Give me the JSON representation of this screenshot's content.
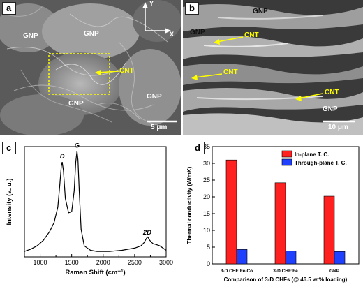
{
  "panels": {
    "a": {
      "letter": "a",
      "labels": [
        "GNP",
        "GNP",
        "GNP",
        "GNP"
      ],
      "cnt": "CNT",
      "axis_y": "Y",
      "axis_x": "X",
      "scale_bar": "5 μm"
    },
    "b": {
      "letter": "b",
      "labels": [
        "GNP",
        "GNP",
        "GNP"
      ],
      "cnt": [
        "CNT",
        "CNT",
        "CNT"
      ],
      "scale_bar": "10 μm"
    }
  },
  "chart_data": [
    {
      "panel": "c",
      "letter": "c",
      "type": "line",
      "xlabel": "Raman Shift (cm⁻¹)",
      "ylabel": "Intensity (a. u.)",
      "xlim": [
        750,
        3000
      ],
      "xticks": [
        1000,
        1500,
        2000,
        2500,
        3000
      ],
      "tick_labels": [
        "1000",
        "1500",
        "2000",
        "2500",
        "3000"
      ],
      "annotations": [
        {
          "text": "D",
          "x": 1350
        },
        {
          "text": "G",
          "x": 1585
        },
        {
          "text": "2D",
          "x": 2700
        }
      ],
      "series": [
        {
          "x": [
            750,
            850,
            950,
            1050,
            1150,
            1220,
            1280,
            1310,
            1335,
            1350,
            1370,
            1400,
            1450,
            1500,
            1540,
            1565,
            1585,
            1600,
            1620,
            1650,
            1700,
            1800,
            1900,
            2000,
            2100,
            2200,
            2300,
            2400,
            2500,
            2600,
            2650,
            2690,
            2710,
            2740,
            2790,
            2850,
            2900,
            2950,
            3000
          ],
          "y": [
            0.05,
            0.07,
            0.1,
            0.15,
            0.23,
            0.31,
            0.45,
            0.64,
            0.82,
            0.86,
            0.78,
            0.53,
            0.4,
            0.41,
            0.6,
            0.86,
            0.96,
            0.88,
            0.6,
            0.25,
            0.1,
            0.06,
            0.05,
            0.05,
            0.05,
            0.055,
            0.06,
            0.07,
            0.08,
            0.1,
            0.13,
            0.17,
            0.18,
            0.15,
            0.12,
            0.11,
            0.1,
            0.08,
            0.06
          ]
        }
      ]
    },
    {
      "panel": "d",
      "letter": "d",
      "type": "bar",
      "xlabel": "Comparison of 3-D CHFs (@ 46.5 wt% loading)",
      "ylabel": "Thermal conductivity (W/mK)",
      "ylim": [
        0,
        35
      ],
      "yticks": [
        0,
        5,
        10,
        15,
        20,
        25,
        30,
        35
      ],
      "tick_labels": [
        "0",
        "5",
        "10",
        "15",
        "20",
        "25",
        "30",
        "35"
      ],
      "categories": [
        "3-D CHF:Fe-Co",
        "3-D CHF:Fe",
        "GNP"
      ],
      "legend_position": "top-right",
      "series": [
        {
          "name": "In-plane T. C.",
          "color": "#ff2020",
          "values": [
            31.0,
            24.2,
            20.2
          ]
        },
        {
          "name": "Through-plane T. C.",
          "color": "#2040ff",
          "values": [
            4.3,
            3.8,
            3.7
          ]
        }
      ]
    }
  ]
}
